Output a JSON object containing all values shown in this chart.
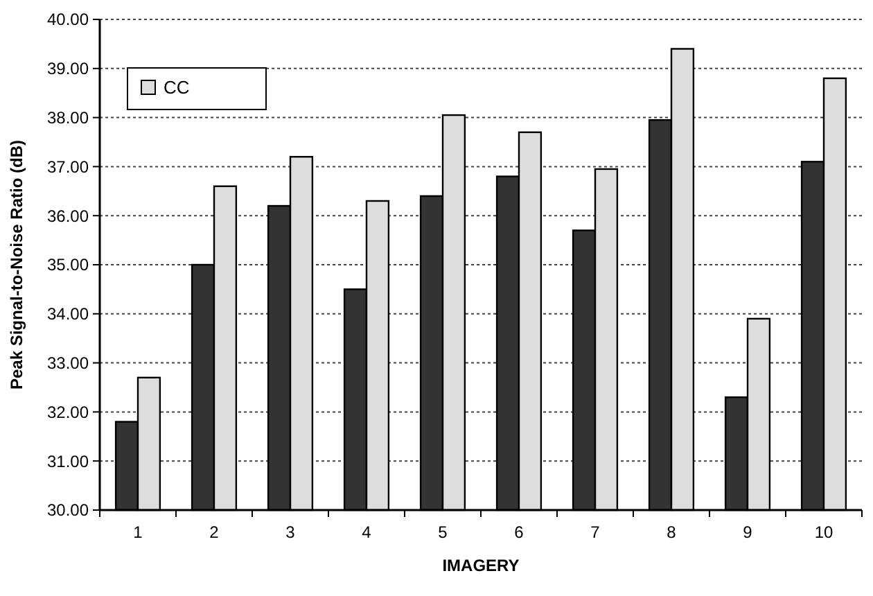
{
  "chart_data": {
    "type": "bar",
    "xlabel": "IMAGERY",
    "ylabel": "Peak Signal-to-Noise Ratio (dB)",
    "categories": [
      "1",
      "2",
      "3",
      "4",
      "5",
      "6",
      "7",
      "8",
      "9",
      "10"
    ],
    "series": [
      {
        "color": "#333333",
        "values": [
          31.8,
          35.0,
          36.2,
          34.5,
          36.4,
          36.8,
          35.7,
          37.95,
          32.3,
          37.1
        ]
      },
      {
        "name": "CC",
        "color": "#dddddd",
        "values": [
          32.7,
          36.6,
          37.2,
          36.3,
          38.05,
          37.7,
          36.95,
          39.4,
          33.9,
          38.8
        ]
      }
    ],
    "ylim": [
      30,
      40
    ],
    "yticks": [
      {
        "value": 30,
        "label": "30.00"
      },
      {
        "value": 31,
        "label": "31.00"
      },
      {
        "value": 32,
        "label": "32.00"
      },
      {
        "value": 33,
        "label": "33.00"
      },
      {
        "value": 34,
        "label": "34.00"
      },
      {
        "value": 35,
        "label": "35.00"
      },
      {
        "value": 36,
        "label": "36.00"
      },
      {
        "value": 37,
        "label": "37.00"
      },
      {
        "value": 38,
        "label": "38.00"
      },
      {
        "value": 39,
        "label": "39.00"
      },
      {
        "value": 40,
        "label": "40.00"
      }
    ],
    "grid": "y",
    "legend": "top left"
  }
}
